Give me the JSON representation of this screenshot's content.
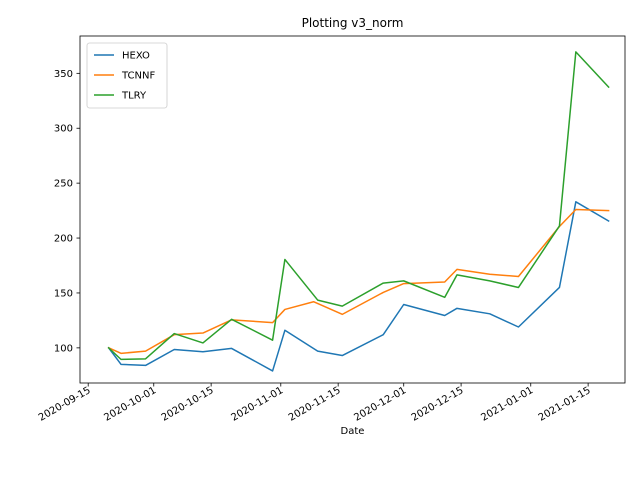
{
  "chart_data": {
    "type": "line",
    "title": "Plotting v3_norm",
    "xlabel": "Date",
    "ylabel": "",
    "grid": false,
    "legend_position": "top-left",
    "xlim": [
      "2020-09-13",
      "2021-01-24"
    ],
    "ylim": [
      68,
      384
    ],
    "x_ticks": [
      "2020-09-15",
      "2020-10-01",
      "2020-10-15",
      "2020-11-01",
      "2020-11-15",
      "2020-12-01",
      "2020-12-15",
      "2021-01-01",
      "2021-01-15"
    ],
    "y_ticks": [
      100,
      150,
      200,
      250,
      300,
      350
    ],
    "series": [
      {
        "name": "HEXO",
        "color": "#1f77b4",
        "x": [
          "2020-09-20",
          "2020-09-23",
          "2020-09-29",
          "2020-10-06",
          "2020-10-13",
          "2020-10-20",
          "2020-10-30",
          "2020-11-02",
          "2020-11-10",
          "2020-11-16",
          "2020-11-26",
          "2020-12-01",
          "2020-12-11",
          "2020-12-14",
          "2020-12-22",
          "2020-12-29",
          "2021-01-08",
          "2021-01-12",
          "2021-01-20"
        ],
        "y": [
          100,
          85,
          84,
          98.5,
          96.5,
          99.5,
          79,
          116,
          97,
          93,
          112,
          139.5,
          129.5,
          136,
          131,
          119,
          155,
          233,
          215.5
        ]
      },
      {
        "name": "TCNNF",
        "color": "#ff7f0e",
        "x": [
          "2020-09-20",
          "2020-09-23",
          "2020-09-29",
          "2020-10-06",
          "2020-10-13",
          "2020-10-20",
          "2020-10-30",
          "2020-11-02",
          "2020-11-09",
          "2020-11-16",
          "2020-11-26",
          "2020-12-01",
          "2020-12-11",
          "2020-12-14",
          "2020-12-22",
          "2020-12-29",
          "2021-01-08",
          "2021-01-12",
          "2021-01-20"
        ],
        "y": [
          100,
          95,
          97,
          112,
          113.5,
          125.5,
          123,
          135,
          142,
          130.5,
          150.5,
          158.5,
          160,
          171.5,
          167,
          165,
          210.5,
          226,
          225
        ]
      },
      {
        "name": "TLRY",
        "color": "#2ca02c",
        "x": [
          "2020-09-20",
          "2020-09-23",
          "2020-09-29",
          "2020-10-06",
          "2020-10-13",
          "2020-10-20",
          "2020-10-30",
          "2020-11-02",
          "2020-11-10",
          "2020-11-16",
          "2020-11-26",
          "2020-12-01",
          "2020-12-11",
          "2020-12-14",
          "2020-12-22",
          "2020-12-29",
          "2021-01-08",
          "2021-01-12",
          "2021-01-20"
        ],
        "y": [
          100,
          89.5,
          90,
          113,
          104.5,
          126,
          107,
          180.5,
          143.5,
          138,
          159,
          161,
          146,
          166.5,
          161,
          155,
          211,
          369.5,
          337.5
        ]
      }
    ]
  }
}
